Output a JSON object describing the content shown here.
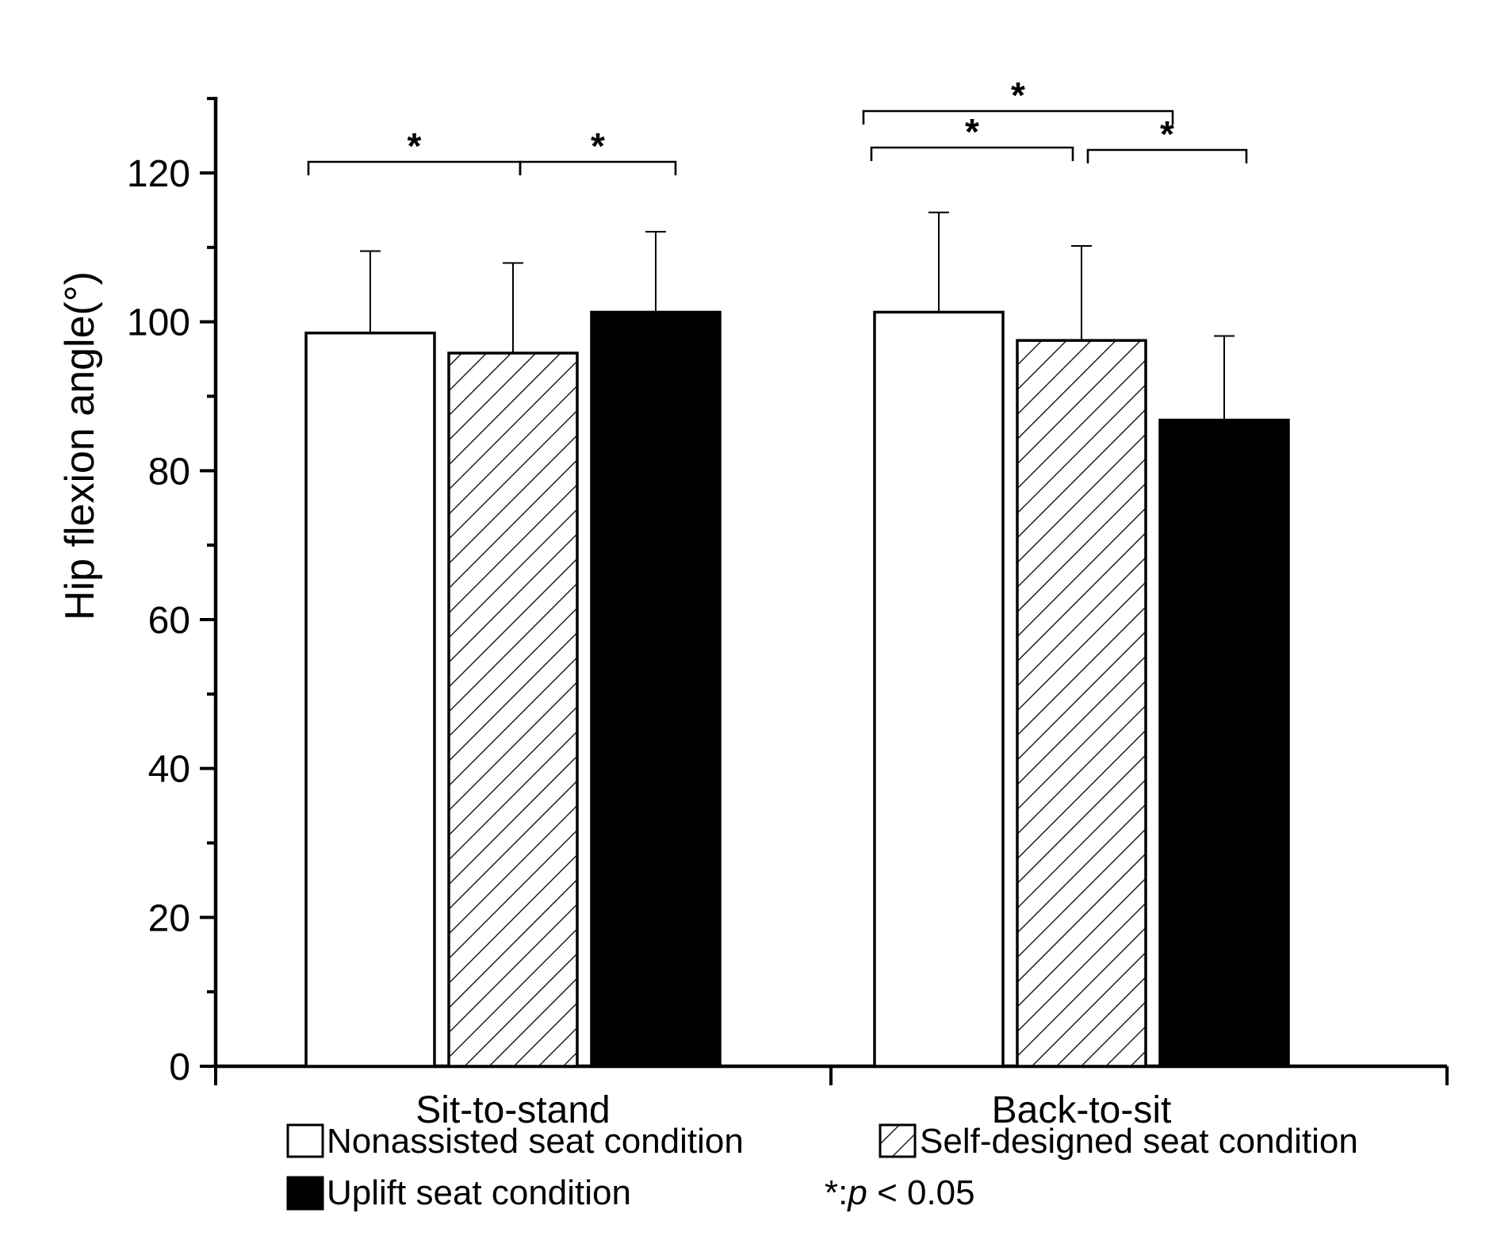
{
  "chart_data": {
    "type": "bar",
    "title": "",
    "xlabel": "",
    "ylabel": "Hip flexion angle(°)",
    "ylim": [
      0,
      130
    ],
    "yticks": [
      0,
      20,
      40,
      60,
      80,
      100,
      120
    ],
    "grid": false,
    "categories": [
      "Sit-to-stand",
      "Back-to-sit"
    ],
    "series": [
      {
        "name": "Nonassisted seat condition",
        "pattern": "white",
        "values": [
          98.5,
          101.3
        ],
        "errors": [
          11.0,
          13.4
        ]
      },
      {
        "name": "Self-designed seat condition",
        "pattern": "hatched",
        "values": [
          95.8,
          97.5
        ],
        "errors": [
          12.1,
          12.7
        ]
      },
      {
        "name": "Uplift seat condition",
        "pattern": "black",
        "values": [
          101.3,
          86.8
        ],
        "errors": [
          10.8,
          11.3
        ]
      }
    ],
    "significance": [
      {
        "category": 0,
        "from_series": 0,
        "to_series": 1,
        "label": "*"
      },
      {
        "category": 0,
        "from_series": 1,
        "to_series": 2,
        "label": "*"
      },
      {
        "category": 1,
        "from_series": 0,
        "to_series": 1,
        "label": "*"
      },
      {
        "category": 1,
        "from_series": 1,
        "to_series": 2,
        "label": "*"
      },
      {
        "category": 1,
        "from_series": 0,
        "to_series": 2,
        "label": "*"
      }
    ],
    "legend": {
      "position": "bottom",
      "note_prefix": "*:",
      "note_p": "p",
      "note_suffix": " < 0.05"
    }
  },
  "colors": {
    "axis": "#000000",
    "fill_black": "#000000",
    "fill_white": "#ffffff"
  }
}
